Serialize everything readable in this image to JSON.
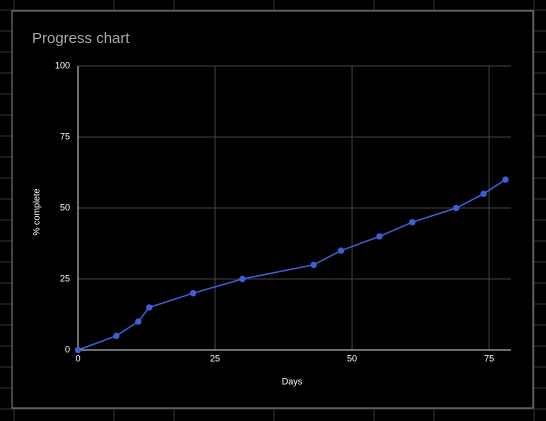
{
  "chart_data": {
    "type": "line",
    "title": "Progress chart",
    "x_label": "Days",
    "y_label": "% complete",
    "x": [
      0,
      7,
      11,
      13,
      21,
      30,
      43,
      48,
      55,
      61,
      69,
      74,
      78
    ],
    "series": [
      {
        "name": "% complete",
        "color": "#3c5fd6",
        "values": [
          0,
          5,
          10,
          15,
          20,
          25,
          30,
          35,
          40,
          45,
          50,
          55,
          60
        ]
      }
    ],
    "xlim": [
      0,
      79
    ],
    "xticks": [
      0,
      25,
      50,
      75
    ],
    "ylim": [
      0,
      100
    ],
    "yticks": [
      0,
      25,
      50,
      75,
      100
    ],
    "grid": true
  }
}
